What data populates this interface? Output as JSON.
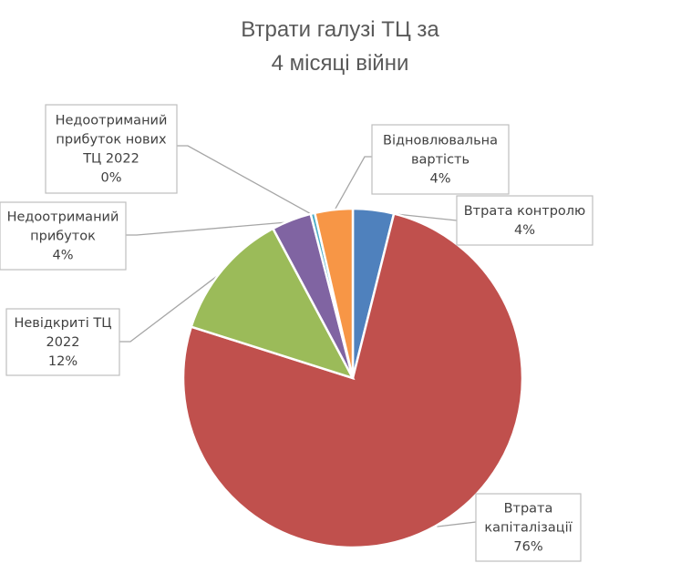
{
  "chart_data": {
    "type": "pie",
    "title": [
      "Втрати галузі ТЦ за",
      "4 місяці війни"
    ],
    "slices": [
      {
        "label": [
          "Втрата контролю"
        ],
        "pct_text": "4%",
        "value": 3.9,
        "color": "#4f81bd"
      },
      {
        "label": [
          "Втрата",
          "капіталізації"
        ],
        "pct_text": "76%",
        "value": 76,
        "color": "#c0504d"
      },
      {
        "label": [
          "Невідкриті ТЦ",
          "2022"
        ],
        "pct_text": "12%",
        "value": 12.3,
        "color": "#9bbb59"
      },
      {
        "label": [
          "Недоотриманий",
          "прибуток"
        ],
        "pct_text": "4%",
        "value": 3.8,
        "color": "#8064a2"
      },
      {
        "label": [
          "Недоотриманий",
          "прибуток нових",
          "ТЦ 2022"
        ],
        "pct_text": "0%",
        "value": 0.4,
        "color": "#4bacc6"
      },
      {
        "label": [
          "Відновлювальна",
          "вартість"
        ],
        "pct_text": "4%",
        "value": 3.6,
        "color": "#f79646"
      }
    ]
  }
}
